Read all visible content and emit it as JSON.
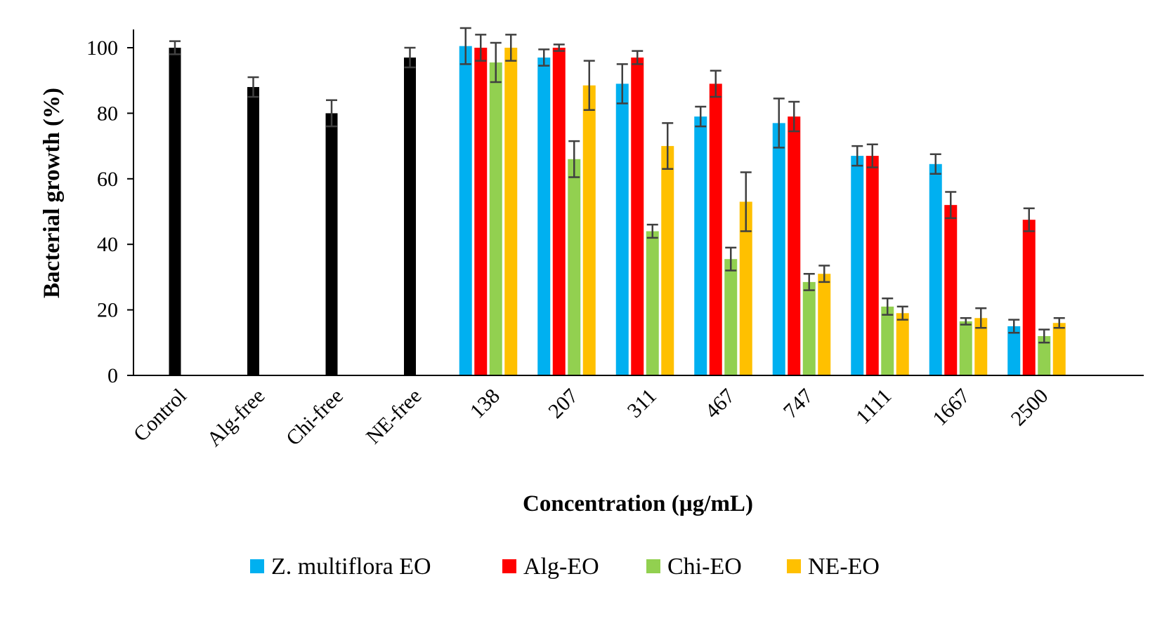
{
  "chart_data": {
    "type": "bar",
    "title": "",
    "xlabel": "Concentration (µg/mL)",
    "ylabel": "Bacterial growth (%)",
    "ylim": [
      0,
      100
    ],
    "yticks": [
      0,
      20,
      40,
      60,
      80,
      100
    ],
    "grid": false,
    "legend_position": "bottom",
    "controls": {
      "categories": [
        "Control",
        "Alg-free",
        "Chi-free",
        "NE-free"
      ],
      "values": [
        100,
        88,
        80,
        97
      ],
      "errors": [
        2,
        3,
        4,
        3
      ],
      "color": "#000000"
    },
    "categories": [
      "138",
      "207",
      "311",
      "467",
      "747",
      "1111",
      "1667",
      "2500"
    ],
    "series": [
      {
        "name": "Z. multiflora EO",
        "color": "#00B0F0",
        "values": [
          100.5,
          97,
          89,
          79,
          77,
          67,
          64.5,
          15
        ],
        "errors": [
          5.5,
          2.5,
          6,
          3,
          7.5,
          3,
          3,
          2
        ]
      },
      {
        "name": "Alg-EO",
        "color": "#FF0000",
        "values": [
          100,
          100,
          97,
          89,
          79,
          67,
          52,
          47.5
        ],
        "errors": [
          4,
          1,
          2,
          4,
          4.5,
          3.5,
          4,
          3.5
        ]
      },
      {
        "name": "Chi-EO",
        "color": "#92D050",
        "values": [
          95.5,
          66,
          44,
          35.5,
          28.5,
          21,
          16.5,
          12
        ],
        "errors": [
          6,
          5.5,
          2,
          3.5,
          2.5,
          2.5,
          1,
          2
        ]
      },
      {
        "name": "NE-EO",
        "color": "#FFC000",
        "values": [
          100,
          88.5,
          70,
          53,
          31,
          19,
          17.5,
          16
        ],
        "errors": [
          4,
          7.5,
          7,
          9,
          2.5,
          2,
          3,
          1.5
        ]
      }
    ]
  }
}
